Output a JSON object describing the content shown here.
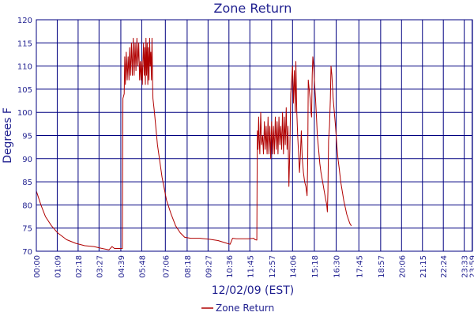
{
  "chart_data": {
    "type": "line",
    "title": "Zone Return",
    "xlabel": "12/02/09 (EST)",
    "ylabel": "Degrees F",
    "ylim": [
      70,
      120
    ],
    "yticks": [
      70,
      75,
      80,
      85,
      90,
      95,
      100,
      105,
      110,
      115,
      120
    ],
    "xlim": [
      0,
      1440
    ],
    "xticks": [
      {
        "t": 0,
        "label": "00:00"
      },
      {
        "t": 69,
        "label": "01:09"
      },
      {
        "t": 138,
        "label": "02:18"
      },
      {
        "t": 207,
        "label": "03:27"
      },
      {
        "t": 279,
        "label": "04:39"
      },
      {
        "t": 348,
        "label": "05:48"
      },
      {
        "t": 426,
        "label": "07:06"
      },
      {
        "t": 498,
        "label": "08:18"
      },
      {
        "t": 567,
        "label": "09:27"
      },
      {
        "t": 636,
        "label": "10:36"
      },
      {
        "t": 705,
        "label": "11:45"
      },
      {
        "t": 777,
        "label": "12:57"
      },
      {
        "t": 846,
        "label": "14:06"
      },
      {
        "t": 918,
        "label": "15:18"
      },
      {
        "t": 990,
        "label": "16:30"
      },
      {
        "t": 1065,
        "label": "17:45"
      },
      {
        "t": 1137,
        "label": "18:57"
      },
      {
        "t": 1206,
        "label": "20:06"
      },
      {
        "t": 1275,
        "label": "21:15"
      },
      {
        "t": 1344,
        "label": "22:24"
      },
      {
        "t": 1413,
        "label": "23:33"
      },
      {
        "t": 1439,
        "label": "23:59"
      }
    ],
    "grid": true,
    "legend": "bottom-center",
    "series": [
      {
        "name": "Zone Return",
        "color": "#b00000",
        "points": [
          [
            0,
            83
          ],
          [
            15,
            80
          ],
          [
            30,
            77.5
          ],
          [
            50,
            75.5
          ],
          [
            70,
            74
          ],
          [
            100,
            72.5
          ],
          [
            130,
            71.7
          ],
          [
            160,
            71.2
          ],
          [
            190,
            71
          ],
          [
            210,
            70.7
          ],
          [
            225,
            70.5
          ],
          [
            240,
            70.3
          ],
          [
            250,
            71
          ],
          [
            258,
            70.6
          ],
          [
            275,
            70.6
          ],
          [
            284,
            70.6
          ],
          [
            286,
            103
          ],
          [
            290,
            104
          ],
          [
            292,
            112
          ],
          [
            294,
            106
          ],
          [
            297,
            113
          ],
          [
            300,
            107
          ],
          [
            303,
            112
          ],
          [
            306,
            107
          ],
          [
            308,
            114
          ],
          [
            311,
            108
          ],
          [
            314,
            115
          ],
          [
            317,
            108
          ],
          [
            320,
            116
          ],
          [
            323,
            108
          ],
          [
            326,
            115
          ],
          [
            329,
            109
          ],
          [
            332,
            116
          ],
          [
            335,
            110
          ],
          [
            338,
            115
          ],
          [
            341,
            107
          ],
          [
            343,
            111
          ],
          [
            346,
            107
          ],
          [
            348,
            111
          ],
          [
            350,
            106
          ],
          [
            352,
            111
          ],
          [
            354,
            115
          ],
          [
            356,
            108
          ],
          [
            358,
            114
          ],
          [
            360,
            106
          ],
          [
            362,
            116
          ],
          [
            364,
            108
          ],
          [
            366,
            115
          ],
          [
            368,
            106
          ],
          [
            370,
            114
          ],
          [
            372,
            107
          ],
          [
            374,
            116
          ],
          [
            376,
            110
          ],
          [
            378,
            113
          ],
          [
            380,
            107
          ],
          [
            382,
            116
          ],
          [
            384,
            106
          ],
          [
            385,
            103
          ],
          [
            390,
            100
          ],
          [
            400,
            93
          ],
          [
            415,
            86
          ],
          [
            430,
            81
          ],
          [
            445,
            78
          ],
          [
            460,
            75.5
          ],
          [
            475,
            74
          ],
          [
            490,
            73
          ],
          [
            510,
            72.8
          ],
          [
            540,
            72.8
          ],
          [
            570,
            72.6
          ],
          [
            600,
            72.3
          ],
          [
            625,
            71.8
          ],
          [
            640,
            71.5
          ],
          [
            648,
            72.8
          ],
          [
            660,
            72.7
          ],
          [
            700,
            72.7
          ],
          [
            718,
            72.8
          ],
          [
            722,
            72.5
          ],
          [
            728,
            72.4
          ],
          [
            729,
            84
          ],
          [
            730,
            96
          ],
          [
            732,
            92
          ],
          [
            734,
            99
          ],
          [
            736,
            94
          ],
          [
            738,
            91
          ],
          [
            741,
            100
          ],
          [
            744,
            93
          ],
          [
            747,
            95
          ],
          [
            750,
            91
          ],
          [
            753,
            98
          ],
          [
            756,
            92
          ],
          [
            759,
            97
          ],
          [
            762,
            91
          ],
          [
            765,
            99
          ],
          [
            768,
            91
          ],
          [
            771,
            97
          ],
          [
            774,
            90
          ],
          [
            777,
            98
          ],
          [
            780,
            91
          ],
          [
            783,
            97
          ],
          [
            786,
            91
          ],
          [
            789,
            99
          ],
          [
            792,
            92
          ],
          [
            795,
            98
          ],
          [
            798,
            91
          ],
          [
            801,
            99
          ],
          [
            804,
            93
          ],
          [
            807,
            97
          ],
          [
            810,
            92
          ],
          [
            813,
            100
          ],
          [
            816,
            91
          ],
          [
            819,
            99
          ],
          [
            822,
            93
          ],
          [
            825,
            101
          ],
          [
            828,
            92
          ],
          [
            831,
            97
          ],
          [
            834,
            84
          ],
          [
            837,
            92
          ],
          [
            840,
            104
          ],
          [
            843,
            107
          ],
          [
            846,
            110
          ],
          [
            849,
            102
          ],
          [
            852,
            109
          ],
          [
            855,
            100
          ],
          [
            857,
            111
          ],
          [
            860,
            100
          ],
          [
            863,
            95
          ],
          [
            866,
            91
          ],
          [
            869,
            87
          ],
          [
            872,
            91
          ],
          [
            875,
            96
          ],
          [
            878,
            90
          ],
          [
            882,
            87
          ],
          [
            886,
            85
          ],
          [
            890,
            84
          ],
          [
            894,
            82
          ],
          [
            896,
            89
          ],
          [
            898,
            107
          ],
          [
            901,
            105
          ],
          [
            904,
            103
          ],
          [
            907,
            100
          ],
          [
            909,
            99
          ],
          [
            911,
            108
          ],
          [
            913,
            112
          ],
          [
            916,
            110
          ],
          [
            919,
            106
          ],
          [
            922,
            103
          ],
          [
            925,
            99
          ],
          [
            928,
            95
          ],
          [
            932,
            92
          ],
          [
            936,
            89
          ],
          [
            940,
            87
          ],
          [
            944,
            85.5
          ],
          [
            948,
            84
          ],
          [
            952,
            82.5
          ],
          [
            956,
            81
          ],
          [
            959,
            80
          ],
          [
            961,
            78.5
          ],
          [
            963,
            83
          ],
          [
            965,
            94
          ],
          [
            968,
            97
          ],
          [
            971,
            103
          ],
          [
            973,
            110
          ],
          [
            976,
            108
          ],
          [
            980,
            103
          ],
          [
            984,
            100
          ],
          [
            988,
            97
          ],
          [
            992,
            93
          ],
          [
            996,
            90
          ],
          [
            1000,
            88
          ],
          [
            1005,
            85
          ],
          [
            1010,
            83
          ],
          [
            1015,
            81
          ],
          [
            1020,
            79.5
          ],
          [
            1025,
            78
          ],
          [
            1030,
            77
          ],
          [
            1035,
            76
          ],
          [
            1040,
            75.5
          ]
        ]
      }
    ]
  }
}
